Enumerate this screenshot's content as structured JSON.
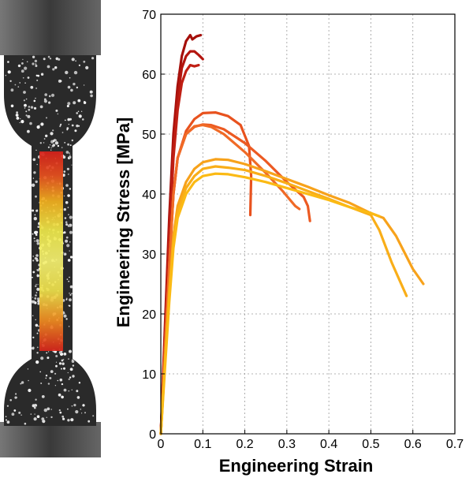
{
  "chart_data": {
    "type": "line",
    "title": "",
    "xlabel": "Engineering Strain",
    "ylabel": "Engineering Stress [MPa]",
    "xlim": [
      0,
      0.7
    ],
    "ylim": [
      0,
      70
    ],
    "xticks": [
      0,
      0.1,
      0.2,
      0.3,
      0.4,
      0.5,
      0.6,
      0.7
    ],
    "yticks": [
      0,
      10,
      20,
      30,
      40,
      50,
      60,
      70
    ],
    "xtick_labels": [
      "0",
      "0.1",
      "0.2",
      "0.3",
      "0.4",
      "0.5",
      "0.6",
      "0.7"
    ],
    "ytick_labels": [
      "0",
      "10",
      "20",
      "30",
      "40",
      "50",
      "60",
      "70"
    ],
    "grid": true,
    "legend": "none",
    "series": [
      {
        "color": "#a50f0a",
        "points": [
          [
            0,
            0
          ],
          [
            0.01,
            18
          ],
          [
            0.02,
            36
          ],
          [
            0.03,
            50
          ],
          [
            0.04,
            58
          ],
          [
            0.05,
            63
          ],
          [
            0.06,
            65.5
          ],
          [
            0.07,
            66.5
          ],
          [
            0.075,
            65.8
          ],
          [
            0.085,
            66.3
          ],
          [
            0.095,
            66.5
          ]
        ]
      },
      {
        "color": "#b3160f",
        "points": [
          [
            0,
            0
          ],
          [
            0.01,
            17
          ],
          [
            0.02,
            34
          ],
          [
            0.03,
            48
          ],
          [
            0.04,
            56
          ],
          [
            0.05,
            61
          ],
          [
            0.06,
            63
          ],
          [
            0.07,
            63.8
          ],
          [
            0.08,
            63.8
          ],
          [
            0.09,
            63.2
          ],
          [
            0.1,
            62.5
          ]
        ]
      },
      {
        "color": "#c01f14",
        "points": [
          [
            0,
            0
          ],
          [
            0.01,
            16
          ],
          [
            0.02,
            32
          ],
          [
            0.03,
            46
          ],
          [
            0.04,
            54
          ],
          [
            0.05,
            58.5
          ],
          [
            0.06,
            60.5
          ],
          [
            0.07,
            61.5
          ],
          [
            0.08,
            61.3
          ],
          [
            0.09,
            61.5
          ]
        ]
      },
      {
        "color": "#e8521e",
        "points": [
          [
            0,
            0
          ],
          [
            0.01,
            14
          ],
          [
            0.02,
            28
          ],
          [
            0.03,
            40
          ],
          [
            0.04,
            46
          ],
          [
            0.06,
            50.5
          ],
          [
            0.08,
            52.5
          ],
          [
            0.1,
            53.5
          ],
          [
            0.13,
            53.6
          ],
          [
            0.16,
            53
          ],
          [
            0.19,
            51.5
          ],
          [
            0.21,
            48
          ],
          [
            0.215,
            43
          ],
          [
            0.213,
            36.5
          ]
        ]
      },
      {
        "color": "#ec5a22",
        "points": [
          [
            0,
            0
          ],
          [
            0.01,
            14
          ],
          [
            0.02,
            28
          ],
          [
            0.03,
            40
          ],
          [
            0.04,
            46
          ],
          [
            0.06,
            50
          ],
          [
            0.08,
            51.2
          ],
          [
            0.1,
            51.6
          ],
          [
            0.12,
            51.5
          ],
          [
            0.15,
            50.8
          ],
          [
            0.2,
            48.5
          ],
          [
            0.25,
            45.5
          ],
          [
            0.3,
            42
          ],
          [
            0.34,
            39.5
          ],
          [
            0.35,
            38
          ],
          [
            0.355,
            35.5
          ]
        ]
      },
      {
        "color": "#f06a26",
        "points": [
          [
            0,
            0
          ],
          [
            0.01,
            14
          ],
          [
            0.02,
            28
          ],
          [
            0.03,
            40
          ],
          [
            0.04,
            46
          ],
          [
            0.06,
            50
          ],
          [
            0.08,
            51.3
          ],
          [
            0.1,
            51.5
          ],
          [
            0.12,
            51.2
          ],
          [
            0.15,
            50
          ],
          [
            0.2,
            47
          ],
          [
            0.25,
            43.5
          ],
          [
            0.29,
            40.5
          ],
          [
            0.32,
            38
          ],
          [
            0.33,
            37.5
          ]
        ]
      },
      {
        "color": "#f7a21b",
        "points": [
          [
            0,
            0
          ],
          [
            0.01,
            12
          ],
          [
            0.02,
            24
          ],
          [
            0.03,
            33
          ],
          [
            0.04,
            38
          ],
          [
            0.06,
            42
          ],
          [
            0.08,
            44.2
          ],
          [
            0.1,
            45.3
          ],
          [
            0.13,
            45.8
          ],
          [
            0.16,
            45.7
          ],
          [
            0.2,
            45
          ],
          [
            0.25,
            43.8
          ],
          [
            0.3,
            42.5
          ],
          [
            0.35,
            41.2
          ],
          [
            0.4,
            39.8
          ],
          [
            0.45,
            38.5
          ],
          [
            0.5,
            36.8
          ],
          [
            0.53,
            36
          ],
          [
            0.56,
            33
          ],
          [
            0.6,
            27.5
          ],
          [
            0.625,
            25
          ]
        ]
      },
      {
        "color": "#f9ae18",
        "points": [
          [
            0,
            0
          ],
          [
            0.01,
            12
          ],
          [
            0.02,
            23
          ],
          [
            0.03,
            32
          ],
          [
            0.04,
            37
          ],
          [
            0.06,
            41
          ],
          [
            0.08,
            43
          ],
          [
            0.1,
            44.2
          ],
          [
            0.13,
            44.6
          ],
          [
            0.16,
            44.4
          ],
          [
            0.2,
            44
          ],
          [
            0.25,
            43
          ],
          [
            0.3,
            41.8
          ],
          [
            0.35,
            40.5
          ],
          [
            0.4,
            39.2
          ],
          [
            0.45,
            37.8
          ],
          [
            0.5,
            36.5
          ],
          [
            0.52,
            34
          ],
          [
            0.55,
            28.5
          ],
          [
            0.585,
            23
          ]
        ]
      },
      {
        "color": "#fbba14",
        "points": [
          [
            0,
            0
          ],
          [
            0.01,
            11
          ],
          [
            0.02,
            22
          ],
          [
            0.03,
            31
          ],
          [
            0.04,
            36
          ],
          [
            0.06,
            40
          ],
          [
            0.08,
            42
          ],
          [
            0.1,
            43
          ],
          [
            0.13,
            43.4
          ],
          [
            0.16,
            43.3
          ],
          [
            0.2,
            42.8
          ],
          [
            0.25,
            42
          ],
          [
            0.3,
            41
          ],
          [
            0.35,
            40
          ],
          [
            0.4,
            39
          ],
          [
            0.45,
            37.8
          ],
          [
            0.5,
            36.8
          ],
          [
            0.52,
            36.3
          ]
        ]
      }
    ]
  }
}
